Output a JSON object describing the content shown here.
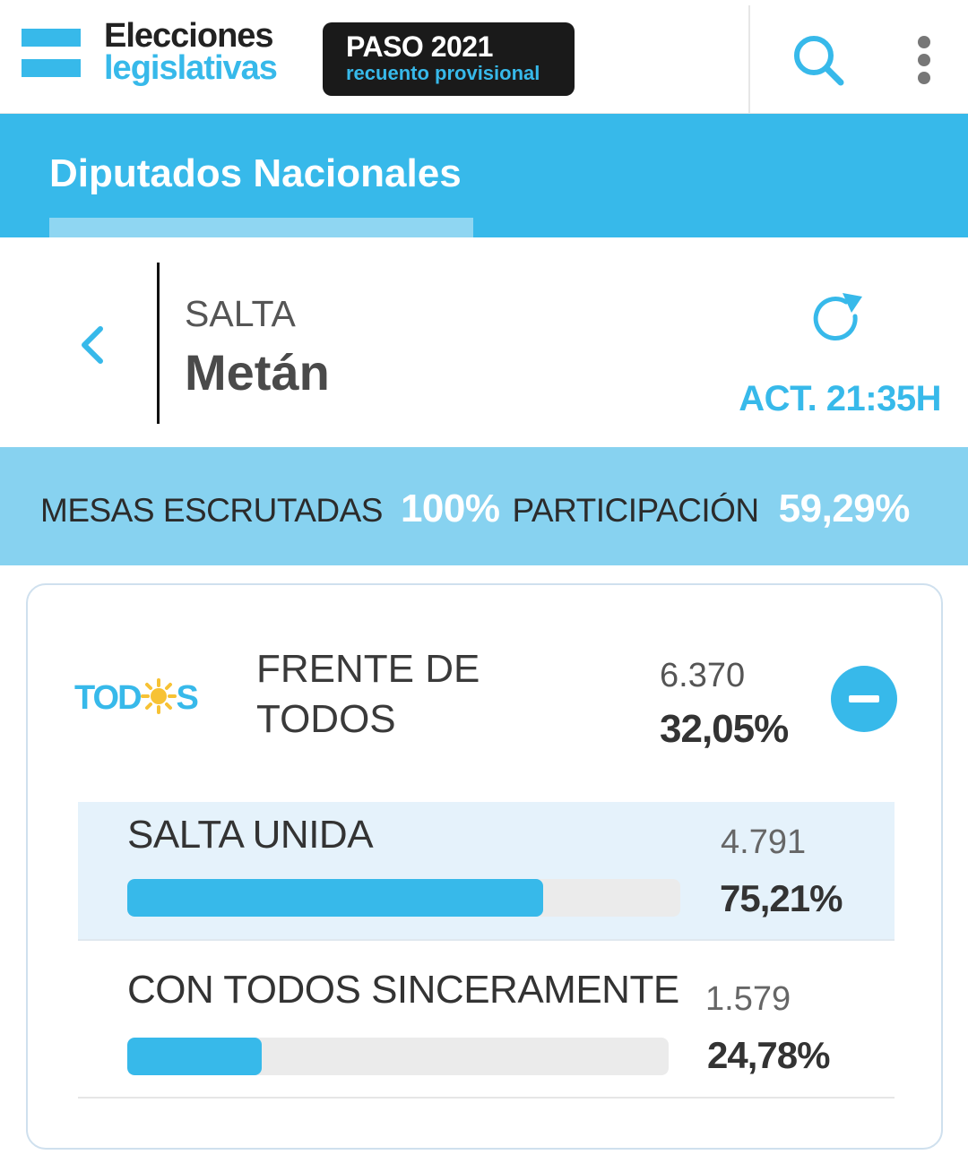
{
  "header": {
    "brand_line1": "Elecciones",
    "brand_line2": "legislativas",
    "badge_title": "PASO 2021",
    "badge_subtitle": "recuento provisional",
    "search_icon": "search-icon",
    "menu_icon": "more-vertical-icon"
  },
  "tab": {
    "label": "Diputados Nacionales"
  },
  "location": {
    "province": "SALTA",
    "city": "Metán",
    "updated": "ACT. 21:35H"
  },
  "stats": {
    "mesas_label": "MESAS ESCRUTADAS",
    "mesas_value": "100%",
    "participacion_label": "PARTICIPACIÓN",
    "participacion_value": "59,29%"
  },
  "party": {
    "logo_text_left": "TOD",
    "logo_text_right": "S",
    "name": "FRENTE DE TODOS",
    "votes": "6.370",
    "percent": "32,05%",
    "lists": [
      {
        "name": "SALTA UNIDA",
        "votes": "4.791",
        "percent": "75,21%",
        "share": 0.7521
      },
      {
        "name": "CON TODOS SINCERAMENTE",
        "votes": "1.579",
        "percent": "24,78%",
        "share": 0.2478
      }
    ]
  },
  "colors": {
    "accent": "#37b9ea",
    "accent_light": "#87d2f0",
    "highlight_row": "#e5f2fb",
    "logo_sun": "#f7c234"
  }
}
